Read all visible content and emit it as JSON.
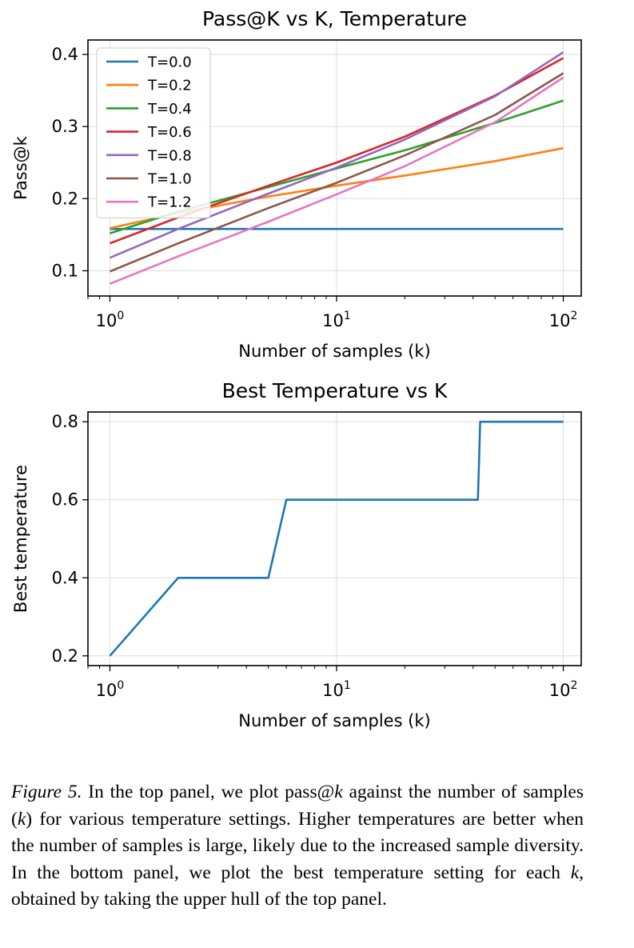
{
  "chart_data": [
    {
      "type": "line",
      "title": "Pass@K vs K, Temperature",
      "xlabel": "Number of samples (k)",
      "ylabel": "Pass@k",
      "xscale": "log",
      "xlim": [
        0.8,
        120
      ],
      "ylim": [
        0.065,
        0.42
      ],
      "xticks": [
        {
          "value": 1,
          "base": "10",
          "exp": "0"
        },
        {
          "value": 10,
          "base": "10",
          "exp": "1"
        },
        {
          "value": 100,
          "base": "10",
          "exp": "2"
        }
      ],
      "yticks": [
        0.1,
        0.2,
        0.3,
        0.4
      ],
      "ytick_labels": [
        "0.1",
        "0.2",
        "0.3",
        "0.4"
      ],
      "grid": true,
      "legend": "top-left",
      "series": [
        {
          "name": "T=0.0",
          "color": "#1f77b4",
          "x": [
            1,
            2,
            5,
            10,
            20,
            50,
            100
          ],
          "y": [
            0.158,
            0.158,
            0.158,
            0.158,
            0.158,
            0.158,
            0.158
          ]
        },
        {
          "name": "T=0.2",
          "color": "#ff7f0e",
          "x": [
            1,
            2,
            5,
            10,
            20,
            50,
            100
          ],
          "y": [
            0.159,
            0.18,
            0.203,
            0.218,
            0.232,
            0.252,
            0.27
          ]
        },
        {
          "name": "T=0.4",
          "color": "#2ca02c",
          "x": [
            1,
            2,
            5,
            10,
            20,
            50,
            100
          ],
          "y": [
            0.152,
            0.182,
            0.216,
            0.242,
            0.267,
            0.305,
            0.336
          ]
        },
        {
          "name": "T=0.6",
          "color": "#d62728",
          "x": [
            1,
            2,
            5,
            10,
            20,
            50,
            100
          ],
          "y": [
            0.138,
            0.174,
            0.218,
            0.25,
            0.286,
            0.343,
            0.395
          ]
        },
        {
          "name": "T=0.8",
          "color": "#9467bd",
          "x": [
            1,
            2,
            5,
            10,
            20,
            50,
            100
          ],
          "y": [
            0.118,
            0.158,
            0.207,
            0.243,
            0.282,
            0.342,
            0.403
          ]
        },
        {
          "name": "T=1.0",
          "color": "#8c564b",
          "x": [
            1,
            2,
            5,
            10,
            20,
            50,
            100
          ],
          "y": [
            0.099,
            0.138,
            0.187,
            0.222,
            0.26,
            0.316,
            0.374
          ]
        },
        {
          "name": "T=1.2",
          "color": "#e377c2",
          "x": [
            1,
            2,
            5,
            10,
            20,
            50,
            100
          ],
          "y": [
            0.082,
            0.12,
            0.168,
            0.206,
            0.245,
            0.306,
            0.368
          ]
        }
      ]
    },
    {
      "type": "line",
      "title": "Best Temperature vs K",
      "xlabel": "Number of samples (k)",
      "ylabel": "Best temperature",
      "xscale": "log",
      "xlim": [
        0.8,
        120
      ],
      "ylim": [
        0.175,
        0.825
      ],
      "xticks": [
        {
          "value": 1,
          "base": "10",
          "exp": "0"
        },
        {
          "value": 10,
          "base": "10",
          "exp": "1"
        },
        {
          "value": 100,
          "base": "10",
          "exp": "2"
        }
      ],
      "yticks": [
        0.2,
        0.4,
        0.6,
        0.8
      ],
      "ytick_labels": [
        "0.2",
        "0.4",
        "0.6",
        "0.8"
      ],
      "grid": true,
      "series": [
        {
          "color": "#1f77b4",
          "x": [
            1,
            2,
            5,
            6,
            42,
            43,
            100
          ],
          "y": [
            0.2,
            0.4,
            0.4,
            0.6,
            0.6,
            0.8,
            0.8
          ]
        }
      ]
    }
  ],
  "caption": {
    "label": "Figure 5.",
    "parts": [
      {
        "t": " In the top panel, we plot pass@"
      },
      {
        "t": "k",
        "math": true
      },
      {
        "t": " against the number of samples ("
      },
      {
        "t": "k",
        "math": true
      },
      {
        "t": ") for various temperature settings. Higher temperatures are better when the number of samples is large, likely due to the increased sample diversity. In the bottom panel, we plot the best temperature setting for each "
      },
      {
        "t": "k",
        "math": true
      },
      {
        "t": ", obtained by taking the upper hull of the top panel."
      }
    ]
  }
}
